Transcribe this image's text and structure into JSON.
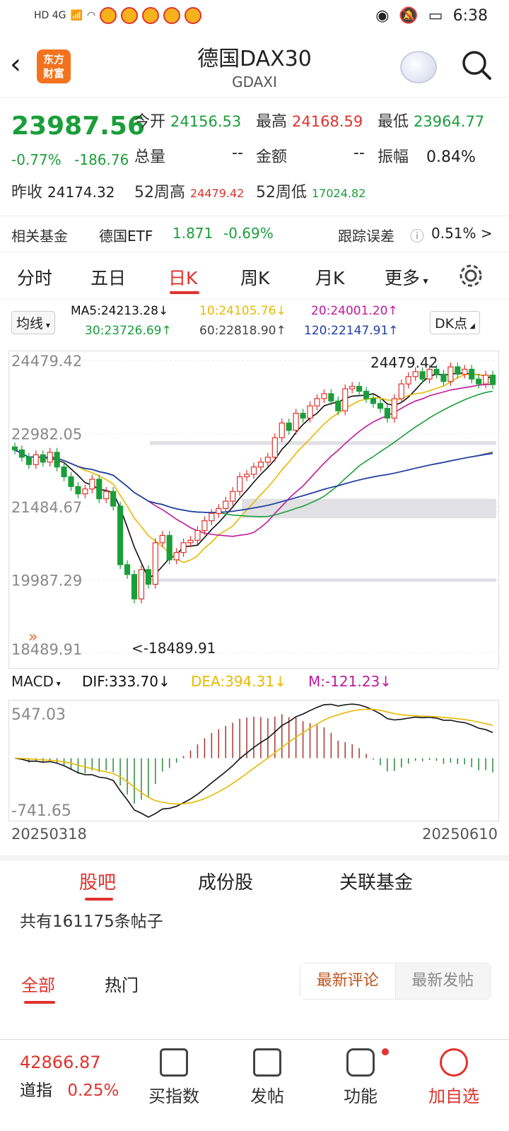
{
  "status": {
    "network": "HD 4G",
    "time": "6:38"
  },
  "header": {
    "logo_line1": "东方",
    "logo_line2": "财富",
    "title": "德国DAX30",
    "subtitle": "GDAXI"
  },
  "quote": {
    "price": "23987.56",
    "change_pct": "-0.77%",
    "change": "-186.76",
    "open_label": "今开",
    "open": "24156.53",
    "high_label": "最高",
    "high": "24168.59",
    "low_label": "最低",
    "low": "23964.77",
    "volume_label": "总量",
    "volume": "--",
    "amount_label": "金额",
    "amount": "--",
    "amplitude_label": "振幅",
    "amplitude": "0.84%",
    "prev_close_label": "昨收",
    "prev_close": "24174.32",
    "wk52_high_label": "52周高",
    "wk52_high": "24479.42",
    "wk52_low_label": "52周低",
    "wk52_low": "17024.82"
  },
  "fund": {
    "label": "相关基金",
    "name": "德国ETF",
    "price": "1.871",
    "change": "-0.69%",
    "tracking_label": "跟踪误差",
    "tracking_value": "0.51% >"
  },
  "tabs": [
    "分时",
    "五日",
    "日K",
    "周K",
    "月K",
    "更多"
  ],
  "active_tab": 2,
  "ma": {
    "selector": "均线",
    "ma5": "MA5:24213.28↓",
    "ma10": "10:24105.76↓",
    "ma20": "20:24001.20↑",
    "ma30": "30:23726.69↑",
    "ma60": "60:22818.90↑",
    "ma120": "120:22147.91↑",
    "dk": "DK点",
    "colors": {
      "ma5": "#111111",
      "ma10": "#e8b900",
      "ma20": "#c0199c",
      "ma30": "#1a9e3a",
      "ma60": "#666666",
      "ma120": "#1f3fa8"
    }
  },
  "chart_data": {
    "type": "candlestick",
    "y_labels": [
      "24479.42",
      "22982.05",
      "21484.67",
      "19987.29",
      "18489.91"
    ],
    "ylim": [
      18489.91,
      24479.42
    ],
    "high_annotation": "24479.42",
    "low_annotation": "<-18489.91",
    "closes": [
      22650,
      22500,
      22350,
      22550,
      22400,
      22600,
      22300,
      22100,
      21900,
      21750,
      21850,
      22050,
      21650,
      21800,
      21500,
      20300,
      20100,
      19600,
      20200,
      19900,
      20750,
      20900,
      20400,
      20550,
      20750,
      20800,
      21000,
      21200,
      21350,
      21450,
      21600,
      21800,
      22100,
      22150,
      22300,
      22400,
      22500,
      22900,
      23200,
      23050,
      23400,
      23300,
      23550,
      23700,
      23800,
      23650,
      23450,
      23900,
      23950,
      23850,
      23700,
      23600,
      23500,
      23300,
      23700,
      24000,
      24150,
      24250,
      24100,
      24300,
      24200,
      24050,
      24350,
      24200,
      24300,
      24100,
      24000,
      24180,
      23987
    ],
    "macd_labels": {
      "max": "547.03",
      "min": "-741.65"
    },
    "x_start": "20250318",
    "x_end": "20250610"
  },
  "macd": {
    "selector": "MACD",
    "dif": "DIF:333.70↓",
    "dea": "DEA:394.31↓",
    "m": "M:-121.23↓"
  },
  "sections": [
    "股吧",
    "成份股",
    "关联基金"
  ],
  "posts": {
    "count_text": "共有161175条帖子"
  },
  "subtabs": [
    "全部",
    "热门"
  ],
  "sort": {
    "latest_comment": "最新评论",
    "latest_post": "最新发帖"
  },
  "bottom": {
    "index_value": "42866.87",
    "index_name": "道指",
    "index_change": "0.25%",
    "buy": "买指数",
    "post": "发帖",
    "func": "功能",
    "add": "加自选"
  }
}
